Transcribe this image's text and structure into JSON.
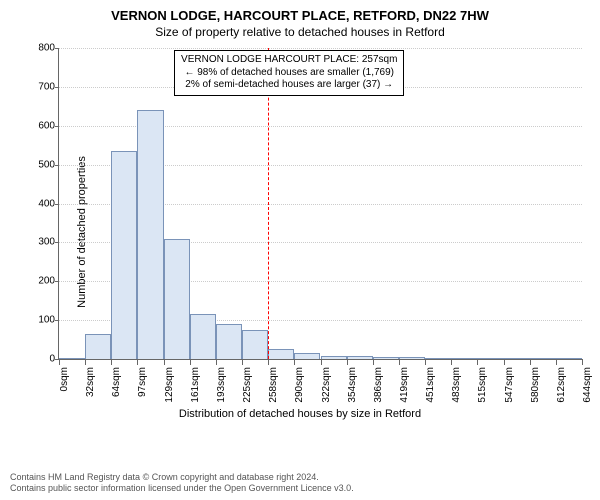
{
  "title": "VERNON LODGE, HARCOURT PLACE, RETFORD, DN22 7HW",
  "subtitle": "Size of property relative to detached houses in Retford",
  "chart": {
    "type": "histogram",
    "ylabel": "Number of detached properties",
    "xlabel": "Distribution of detached houses by size in Retford",
    "ylim": [
      0,
      800
    ],
    "ytick_step": 100,
    "yticks": [
      0,
      100,
      200,
      300,
      400,
      500,
      600,
      700,
      800
    ],
    "xtick_labels": [
      "0sqm",
      "32sqm",
      "64sqm",
      "97sqm",
      "129sqm",
      "161sqm",
      "193sqm",
      "225sqm",
      "258sqm",
      "290sqm",
      "322sqm",
      "354sqm",
      "386sqm",
      "419sqm",
      "451sqm",
      "483sqm",
      "515sqm",
      "547sqm",
      "580sqm",
      "612sqm",
      "644sqm"
    ],
    "values": [
      0,
      65,
      535,
      640,
      310,
      115,
      90,
      75,
      25,
      15,
      8,
      8,
      6,
      6,
      0,
      0,
      0,
      0,
      0,
      0
    ],
    "bar_fill": "#dbe6f4",
    "bar_stroke": "#7a93b8",
    "grid_color": "#cccccc",
    "axis_color": "#666666",
    "background_color": "#ffffff",
    "label_fontsize": 11,
    "tick_fontsize": 10,
    "reference_line": {
      "value_sqm": 257,
      "x_max_sqm": 644,
      "color": "#ff0000",
      "dash": "3,3"
    },
    "annotation": {
      "lines": [
        "VERNON LODGE HARCOURT PLACE: 257sqm",
        "← 98% of detached houses are smaller (1,769)",
        "2% of semi-detached houses are larger (37) →"
      ],
      "border_color": "#000000",
      "bg_color": "#ffffff",
      "fontsize": 10
    }
  },
  "footer": {
    "line1": "Contains HM Land Registry data © Crown copyright and database right 2024.",
    "line2": "Contains public sector information licensed under the Open Government Licence v3.0.",
    "color": "#555555",
    "fontsize": 9
  }
}
